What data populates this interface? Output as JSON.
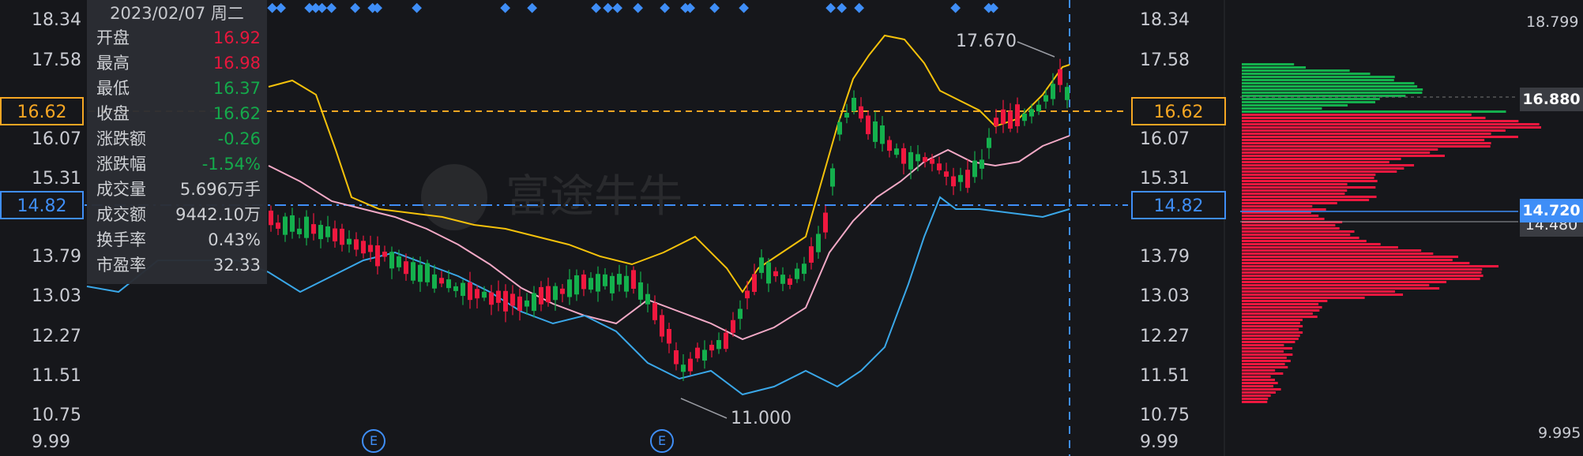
{
  "colors": {
    "bg": "#16171b",
    "up": "#f0183f",
    "down": "#14b04d",
    "ma_yellow": "#f5c20b",
    "ma_pink": "#f2a9c6",
    "ma_blue": "#3aa7e8",
    "accent_orange": "#f5a623",
    "accent_blue": "#3f8ef7"
  },
  "price_axis": [
    "18.34",
    "17.58",
    "16.62",
    "16.07",
    "15.31",
    "14.82",
    "13.79",
    "13.03",
    "12.27",
    "11.51",
    "10.75",
    "9.99"
  ],
  "left_tag_orange": "16.62",
  "left_tag_blue": "14.82",
  "right_tag_orange": "16.62",
  "right_tag_blue": "14.82",
  "high_annotation": "17.670",
  "low_annotation": "11.000",
  "event_marker": "E",
  "watermark": "富途牛牛",
  "tooltip": {
    "date": "2023/02/07 周二",
    "rows": [
      {
        "key": "开盘",
        "value": "16.92",
        "color": "up"
      },
      {
        "key": "最高",
        "value": "16.98",
        "color": "up"
      },
      {
        "key": "最低",
        "value": "16.37",
        "color": "down"
      },
      {
        "key": "收盘",
        "value": "16.62",
        "color": "down"
      },
      {
        "key": "涨跌额",
        "value": "-0.26",
        "color": "down"
      },
      {
        "key": "涨跌幅",
        "value": "-1.54%",
        "color": "down"
      },
      {
        "key": "成交量",
        "value": "5.696万手",
        "color": "neutral"
      },
      {
        "key": "成交额",
        "value": "9442.10万",
        "color": "neutral"
      },
      {
        "key": "换手率",
        "value": "0.43%",
        "color": "neutral"
      },
      {
        "key": "市盈率",
        "value": "32.33",
        "color": "neutral"
      }
    ]
  },
  "volume_profile": {
    "top_label": "18.799",
    "bottom_label": "9.995",
    "tag_gray": "16.880",
    "tag_blue": "14.720",
    "tag_hidden": "14.480"
  },
  "chart_data": {
    "type": "candlestick",
    "ylim": [
      9.99,
      18.34
    ],
    "high": 17.67,
    "low": 11.0,
    "last_close": 16.62,
    "crosshair_price": 14.82
  }
}
